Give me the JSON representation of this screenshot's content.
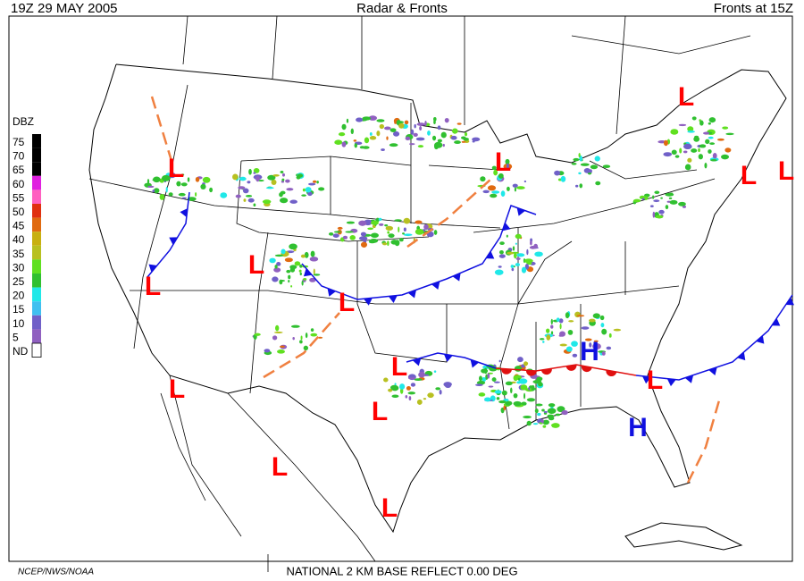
{
  "header": {
    "left": "19Z  29 MAY  2005",
    "center": "Radar & Fronts",
    "right": "Fronts at 15Z"
  },
  "legend": {
    "title": "DBZ",
    "levels": [
      75,
      70,
      65,
      60,
      55,
      50,
      45,
      40,
      35,
      30,
      25,
      20,
      15,
      10,
      5
    ],
    "colors": [
      "#000000",
      "#000000",
      "#000000",
      "#e020e0",
      "#ff60c0",
      "#e03010",
      "#e06a10",
      "#c8b010",
      "#b8c020",
      "#60e020",
      "#30c030",
      "#20e8e8",
      "#40c0f0",
      "#7060c8",
      "#9060c0"
    ],
    "nd_label": "ND"
  },
  "pressure_centers": [
    "L",
    "L",
    "L",
    "L",
    "L",
    "L",
    "L",
    "L",
    "L",
    "L",
    "L",
    "L",
    "L",
    "L",
    "H",
    "H"
  ],
  "footer": {
    "credit": "NCEP/NWS/NOAA",
    "product": "NATIONAL 2 KM BASE REFLECT 0.00 DEG"
  }
}
